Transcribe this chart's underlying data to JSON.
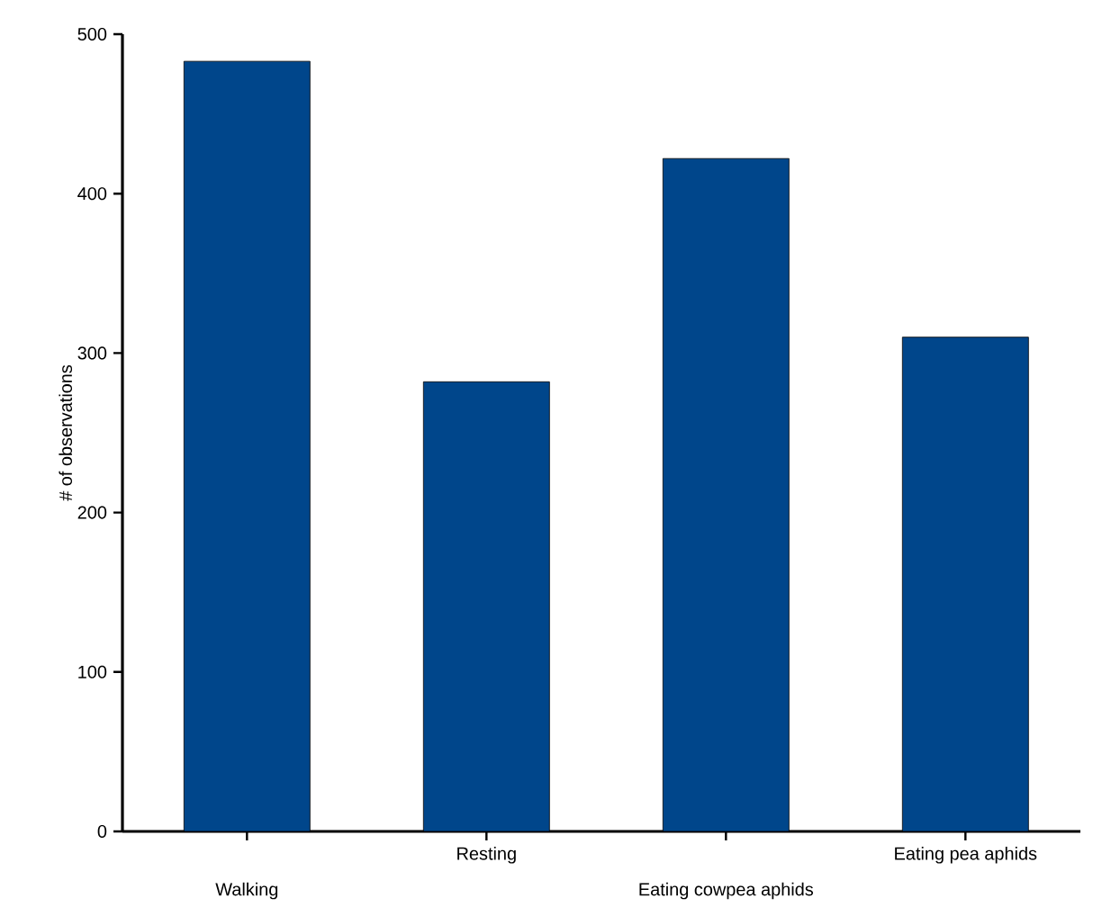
{
  "chart_data": {
    "type": "bar",
    "ylabel": "# of observations",
    "categories": [
      "Walking",
      "Resting",
      "Eating cowpea aphids",
      "Eating pea aphids"
    ],
    "values": [
      483,
      282,
      422,
      310
    ],
    "color": "#00468b",
    "ylim": [
      0,
      500
    ],
    "yticks": [
      0,
      100,
      200,
      300,
      400,
      500
    ],
    "grid": false
  }
}
